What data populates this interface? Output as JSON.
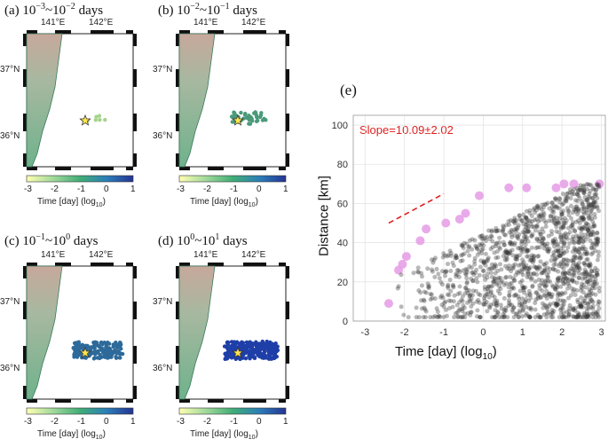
{
  "panels": [
    {
      "id": "a",
      "label": "(a) 10",
      "exp1": "−3",
      "mid": "~10",
      "exp2": "−2",
      "suffix": " days"
    },
    {
      "id": "b",
      "label": "(b) 10",
      "exp1": "−2",
      "mid": "~10",
      "exp2": "−1",
      "suffix": " days"
    },
    {
      "id": "c",
      "label": "(c) 10",
      "exp1": "−1",
      "mid": "~10",
      "exp2": "0",
      "suffix": " days"
    },
    {
      "id": "d",
      "label": "(d) 10",
      "exp1": "0",
      "mid": "~10",
      "exp2": "1",
      "suffix": " days"
    }
  ],
  "map": {
    "lon_labels": [
      "141°E",
      "142°E"
    ],
    "lat_labels": [
      "37°N",
      "36°N"
    ],
    "colorbar_ticks": [
      "-3",
      "-2",
      "-1",
      "0",
      "1"
    ],
    "colorbar_label": "Time [day] (log",
    "colorbar_sub": "10",
    "colorbar_close": ")",
    "colors": {
      "land": "#a7b7a0",
      "sea": "#ffffff",
      "coast": "#4a9a7a"
    }
  },
  "chart_data": {
    "type": "scatter",
    "panel_label": "(e)",
    "title": "",
    "annotation": "Slope=10.09±2.02",
    "annotation_color": "#e02020",
    "xlabel": "Time [day] (log",
    "xlabel_sub": "10",
    "xlabel_close": ")",
    "ylabel": "Distance [km]",
    "xlim": [
      -3.3,
      3.1
    ],
    "ylim": [
      0,
      105
    ],
    "xticks": [
      -3,
      -2,
      -1,
      0,
      1,
      2,
      3
    ],
    "yticks": [
      0,
      20,
      40,
      60,
      80,
      100
    ],
    "slope_line": {
      "x": [
        -2.4,
        -1.0
      ],
      "y": [
        50,
        65
      ]
    },
    "envelope_points": [
      {
        "x": -2.4,
        "y": 9
      },
      {
        "x": -2.15,
        "y": 26
      },
      {
        "x": -2.05,
        "y": 29
      },
      {
        "x": -1.95,
        "y": 33
      },
      {
        "x": -1.6,
        "y": 41
      },
      {
        "x": -1.45,
        "y": 47
      },
      {
        "x": -0.95,
        "y": 50
      },
      {
        "x": -0.6,
        "y": 52
      },
      {
        "x": -0.45,
        "y": 55
      },
      {
        "x": -0.1,
        "y": 64
      },
      {
        "x": 0.65,
        "y": 68
      },
      {
        "x": 1.1,
        "y": 68
      },
      {
        "x": 1.85,
        "y": 68
      },
      {
        "x": 2.05,
        "y": 70
      },
      {
        "x": 2.3,
        "y": 70
      },
      {
        "x": 2.95,
        "y": 70
      }
    ]
  }
}
